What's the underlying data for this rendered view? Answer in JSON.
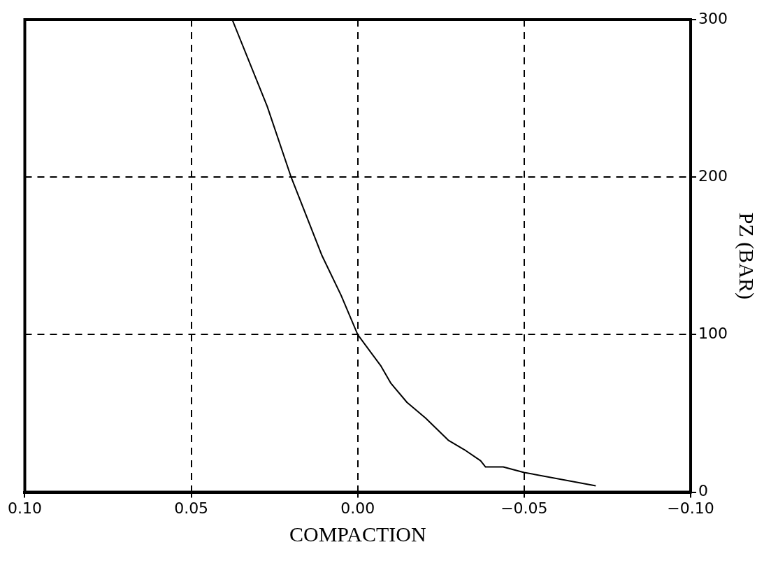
{
  "chart_data": {
    "type": "line",
    "xlabel": "COMPACTION",
    "ylabel": "PZ (BAR)",
    "x": [
      -0.0715,
      -0.05,
      -0.0437,
      -0.0384,
      -0.0369,
      -0.032,
      -0.0272,
      -0.0204,
      -0.0148,
      -0.01,
      -0.007,
      0.0,
      0.005,
      0.0107,
      0.02,
      0.0272,
      0.0377
    ],
    "values": [
      4,
      12.5,
      16,
      16,
      20,
      27,
      33,
      47,
      57,
      69,
      80,
      100,
      125,
      150,
      200,
      245,
      300
    ],
    "color": "#000000",
    "xlim": [
      0.1,
      -0.1
    ],
    "xticks": [
      {
        "value": 0.1,
        "label": "0.10"
      },
      {
        "value": 0.05,
        "label": "0.05"
      },
      {
        "value": 0,
        "label": "0.00"
      },
      {
        "value": -0.05,
        "label": "−0.05"
      },
      {
        "value": -0.1,
        "label": "−0.10"
      }
    ],
    "ylim": [
      0,
      300
    ],
    "yticks": [
      0,
      100,
      200,
      300
    ],
    "grid": true,
    "marker": "none",
    "line_style": "solid",
    "legend": false
  }
}
